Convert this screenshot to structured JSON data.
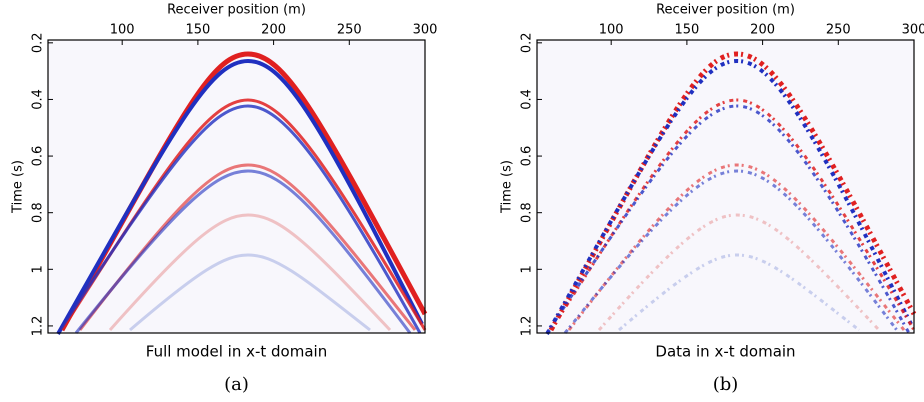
{
  "chart_data": [
    {
      "type": "image",
      "x_label": "Receiver position (m)",
      "y_label": "Time (s)",
      "caption": "Full model in x-t domain",
      "panel_label": "(a)",
      "xlim": [
        51,
        300
      ],
      "xticks": [
        100,
        150,
        200,
        250,
        300
      ],
      "ylim": [
        0.19,
        1.225
      ],
      "yticks": [
        0.2,
        0.4,
        0.6,
        0.8,
        1,
        1.2
      ]
    },
    {
      "type": "image",
      "x_label": "Receiver position (m)",
      "y_label": "Time (s)",
      "caption": "Data in x-t domain",
      "panel_label": "(b)",
      "xlim": [
        51,
        300
      ],
      "xticks": [
        100,
        150,
        200,
        250,
        300
      ],
      "ylim": [
        0.19,
        1.225
      ],
      "yticks": [
        0.2,
        0.4,
        0.6,
        0.8,
        1,
        1.2
      ]
    }
  ]
}
